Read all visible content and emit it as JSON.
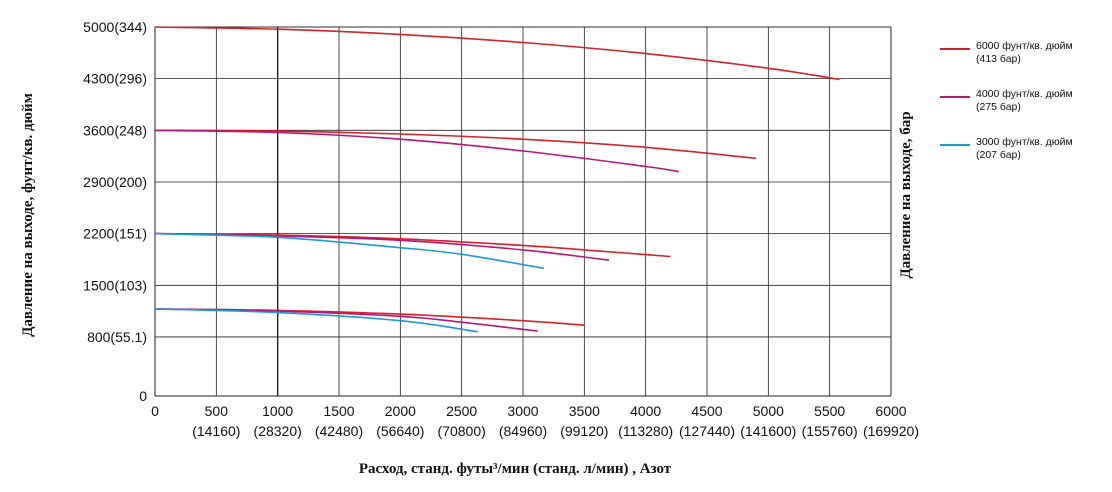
{
  "chart_data": {
    "type": "line",
    "ylabel_left": "Давление на выходе, фунт/кв. дюйм",
    "ylabel_right": "Давление на выходе, бар",
    "xlabel": "Расход, станд. футы³/мин (станд. л/мин) , Азот",
    "xlim": [
      0,
      6000
    ],
    "ylim": [
      0,
      5000
    ],
    "grid": true,
    "legend_position": "right",
    "x_ticks": [
      {
        "value": 0,
        "label": "0",
        "sub": ""
      },
      {
        "value": 500,
        "label": "500",
        "sub": "(14160)"
      },
      {
        "value": 1000,
        "label": "1000",
        "sub": "(28320)"
      },
      {
        "value": 1500,
        "label": "1500",
        "sub": "(42480)"
      },
      {
        "value": 2000,
        "label": "2000",
        "sub": "(56640)"
      },
      {
        "value": 2500,
        "label": "2500",
        "sub": "(70800)"
      },
      {
        "value": 3000,
        "label": "3000",
        "sub": "(84960)"
      },
      {
        "value": 3500,
        "label": "3500",
        "sub": "(99120)"
      },
      {
        "value": 4000,
        "label": "4000",
        "sub": "(113280)"
      },
      {
        "value": 4500,
        "label": "4500",
        "sub": "(127440)"
      },
      {
        "value": 5000,
        "label": "5000",
        "sub": "(141600)"
      },
      {
        "value": 5500,
        "label": "5500",
        "sub": "(155760)"
      },
      {
        "value": 6000,
        "label": "6000",
        "sub": "(169920)"
      }
    ],
    "y_ticks": [
      {
        "value": 0,
        "label": "0"
      },
      {
        "value": 800,
        "label": "800(55.1)"
      },
      {
        "value": 1500,
        "label": "1500(103)"
      },
      {
        "value": 2200,
        "label": "2200(151)"
      },
      {
        "value": 2900,
        "label": "2900(200)"
      },
      {
        "value": 3600,
        "label": "3600(248)"
      },
      {
        "value": 4300,
        "label": "4300(296)"
      },
      {
        "value": 5000,
        "label": "5000(344)"
      }
    ],
    "legend": [
      {
        "label": "6000 фунт/кв. дюйм",
        "sub": "(413 бар)",
        "color": "#d2232a"
      },
      {
        "label": "4000 фунт/кв. дюйм",
        "sub": "(275 бар)",
        "color": "#b5177d"
      },
      {
        "label": "3000 фунт/кв. дюйм",
        "sub": "(207 бар)",
        "color": "#1a9ad6"
      }
    ],
    "series": [
      {
        "group": "6000",
        "color": "#d2232a",
        "points": [
          [
            0,
            5000
          ],
          [
            1000,
            4970
          ],
          [
            2000,
            4900
          ],
          [
            3000,
            4790
          ],
          [
            4000,
            4640
          ],
          [
            5000,
            4440
          ],
          [
            5580,
            4290
          ]
        ]
      },
      {
        "group": "6000",
        "color": "#d2232a",
        "points": [
          [
            0,
            3600
          ],
          [
            1000,
            3590
          ],
          [
            2000,
            3550
          ],
          [
            3000,
            3480
          ],
          [
            4000,
            3370
          ],
          [
            4900,
            3220
          ]
        ]
      },
      {
        "group": "6000",
        "color": "#d2232a",
        "points": [
          [
            0,
            2200
          ],
          [
            1000,
            2180
          ],
          [
            2000,
            2130
          ],
          [
            3000,
            2040
          ],
          [
            3500,
            1980
          ],
          [
            4200,
            1890
          ]
        ]
      },
      {
        "group": "6000",
        "color": "#d2232a",
        "points": [
          [
            0,
            1180
          ],
          [
            1000,
            1160
          ],
          [
            2000,
            1110
          ],
          [
            3000,
            1020
          ],
          [
            3500,
            960
          ]
        ]
      },
      {
        "group": "4000",
        "color": "#b5177d",
        "points": [
          [
            0,
            3600
          ],
          [
            1000,
            3570
          ],
          [
            2000,
            3480
          ],
          [
            3000,
            3320
          ],
          [
            4000,
            3110
          ],
          [
            4270,
            3040
          ]
        ]
      },
      {
        "group": "4000",
        "color": "#b5177d",
        "points": [
          [
            0,
            2200
          ],
          [
            1000,
            2170
          ],
          [
            2000,
            2110
          ],
          [
            3000,
            1980
          ],
          [
            3700,
            1840
          ]
        ]
      },
      {
        "group": "4000",
        "color": "#b5177d",
        "points": [
          [
            0,
            1180
          ],
          [
            1000,
            1150
          ],
          [
            2000,
            1080
          ],
          [
            2500,
            1000
          ],
          [
            3120,
            880
          ]
        ]
      },
      {
        "group": "3000",
        "color": "#1a9ad6",
        "points": [
          [
            0,
            2200
          ],
          [
            1000,
            2150
          ],
          [
            2000,
            2010
          ],
          [
            2500,
            1920
          ],
          [
            3170,
            1730
          ]
        ]
      },
      {
        "group": "3000",
        "color": "#1a9ad6",
        "points": [
          [
            0,
            1180
          ],
          [
            1000,
            1130
          ],
          [
            2000,
            1020
          ],
          [
            2630,
            870
          ]
        ]
      }
    ]
  }
}
